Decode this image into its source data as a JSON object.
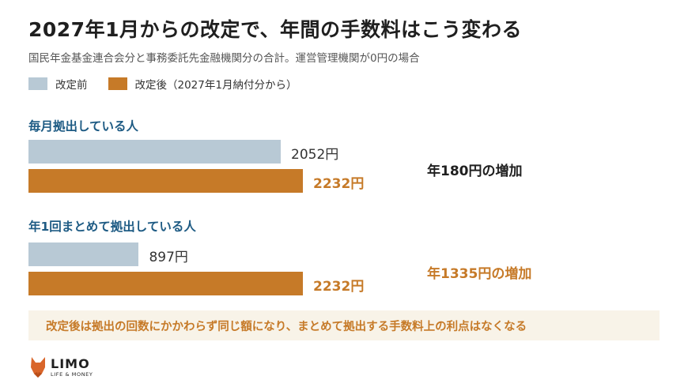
{
  "title": "2027年1月からの改定で、年間の手数料はこう変わる",
  "subtitle": "国民年金基金連合会分と事務委託先金融機関分の合計。運営管理機関が0円の場合",
  "legend": {
    "before": "改定前",
    "after": "改定後（2027年1月納付分から）"
  },
  "colors": {
    "before": "#b8c9d5",
    "after": "#c67a28",
    "group_label": "#1e5b84",
    "note_bg": "#f8f3e8"
  },
  "chart_data": {
    "type": "bar",
    "orientation": "horizontal",
    "categories": [
      "毎月拠出している人",
      "年1回まとめて拠出している人"
    ],
    "series": [
      {
        "name": "改定前",
        "values": [
          2052,
          897
        ]
      },
      {
        "name": "改定後（2027年1月納付分から）",
        "values": [
          2232,
          2232
        ]
      }
    ],
    "value_labels": [
      [
        "2052円",
        "2232円"
      ],
      [
        "897円",
        "2232円"
      ]
    ],
    "differences": [
      "年180円の増加",
      "年1335円の増加"
    ],
    "xlim": [
      0,
      2232
    ]
  },
  "note": "改定後は拠出の回数にかかわらず同じ額になり、まとめて拠出する手数料上の利点はなくなる",
  "logo": {
    "main": "LIMO",
    "sub": "LIFE & MONEY"
  }
}
